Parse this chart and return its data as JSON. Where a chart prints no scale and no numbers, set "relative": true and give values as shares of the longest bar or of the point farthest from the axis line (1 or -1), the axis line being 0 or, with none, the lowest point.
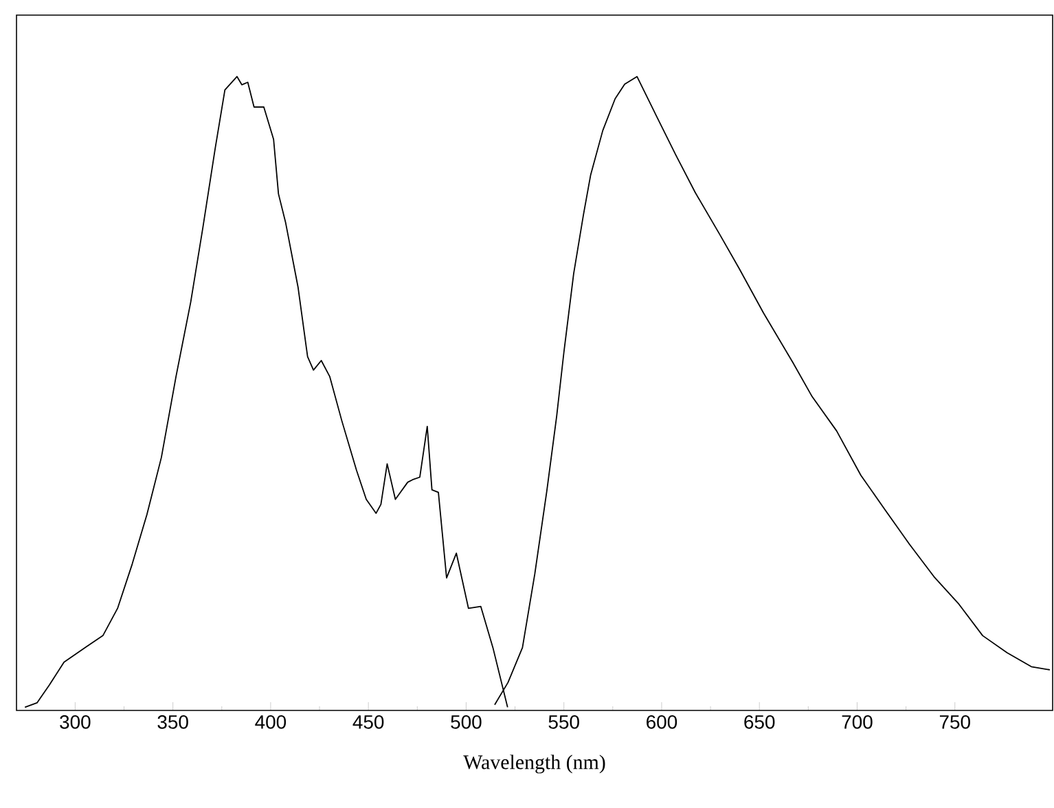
{
  "chart_data": {
    "type": "line",
    "xlabel": "Wavelength (nm)",
    "relative": true,
    "xlim": [
      270,
      800
    ],
    "xticks": [
      300,
      350,
      400,
      450,
      500,
      550,
      600,
      650,
      700,
      750
    ],
    "grid": false,
    "marker": "none",
    "line_style": "solid",
    "series": [
      {
        "color": "#000000",
        "x": [
          274.3,
          280.5,
          286.8,
          294.3,
          305.5,
          314.2,
          321.7,
          329.2,
          336.7,
          344.1,
          351.6,
          359.1,
          365.3,
          371.6,
          376.6,
          382.8,
          385.3,
          388.3,
          391.5,
          396.5,
          401.5,
          404.0,
          407.7,
          414.0,
          418.9,
          421.9,
          425.9,
          430.2,
          436.4,
          443.9,
          448.9,
          453.9,
          456.4,
          459.6,
          463.8,
          470.1,
          472.6,
          476.3,
          480.1,
          482.5,
          485.8,
          490.0,
          495.0,
          501.2,
          507.5,
          513.7,
          521.2
        ],
        "values": [
          0.005,
          0.012,
          0.04,
          0.076,
          0.1,
          0.118,
          0.161,
          0.231,
          0.309,
          0.399,
          0.527,
          0.644,
          0.761,
          0.886,
          0.979,
          1.0,
          0.987,
          0.991,
          0.952,
          0.952,
          0.901,
          0.815,
          0.769,
          0.668,
          0.558,
          0.537,
          0.552,
          0.527,
          0.457,
          0.379,
          0.333,
          0.311,
          0.325,
          0.389,
          0.333,
          0.36,
          0.364,
          0.368,
          0.448,
          0.348,
          0.344,
          0.209,
          0.248,
          0.161,
          0.164,
          0.099,
          0.005
        ]
      },
      {
        "color": "#000000",
        "x": [
          514.6,
          521.4,
          528.8,
          535.1,
          541.3,
          546.3,
          550,
          555,
          560,
          563.7,
          569.9,
          576.2,
          581.1,
          587.4,
          597.3,
          607.3,
          617.2,
          629.7,
          639.7,
          652.1,
          667.1,
          677.0,
          689.5,
          701.9,
          714.4,
          726.8,
          739.3,
          751.7,
          764.2,
          776.7,
          789.1,
          798.6
        ],
        "values": [
          0.009,
          0.044,
          0.099,
          0.215,
          0.347,
          0.464,
          0.565,
          0.689,
          0.782,
          0.845,
          0.915,
          0.965,
          0.988,
          1.0,
          0.938,
          0.876,
          0.817,
          0.751,
          0.697,
          0.627,
          0.549,
          0.495,
          0.441,
          0.371,
          0.316,
          0.262,
          0.211,
          0.169,
          0.118,
          0.091,
          0.069,
          0.064
        ]
      }
    ]
  }
}
